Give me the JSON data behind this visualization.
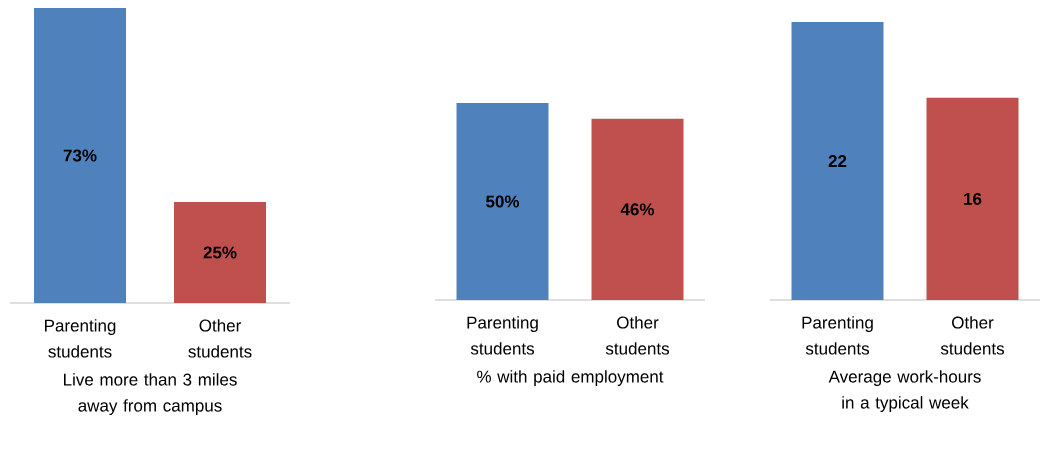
{
  "chart_data": [
    {
      "type": "bar",
      "xlabel": "Live more than 3 miles away from campus",
      "categories": [
        "Parenting students",
        "Other students"
      ],
      "values": [
        73,
        25
      ],
      "colors": [
        "#4f81bd",
        "#c0504d"
      ],
      "value_labels": [
        "73%",
        "25%"
      ]
    },
    {
      "type": "bar",
      "xlabel": "% with paid employment",
      "categories": [
        "Parenting students",
        "Other students"
      ],
      "values": [
        50,
        46
      ],
      "colors": [
        "#4f81bd",
        "#c0504d"
      ],
      "value_labels": [
        "50%",
        "46%"
      ]
    },
    {
      "type": "bar",
      "xlabel": "Average work-hours in a typical week",
      "categories": [
        "Parenting students",
        "Other students"
      ],
      "values": [
        22,
        16
      ],
      "colors": [
        "#4f81bd",
        "#c0504d"
      ],
      "data_labels": true
    }
  ]
}
